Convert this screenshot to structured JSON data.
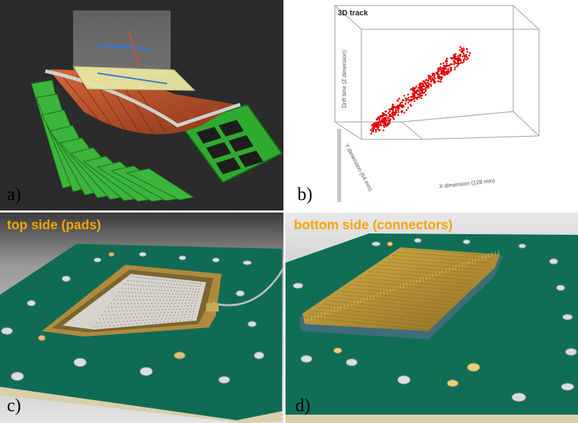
{
  "figure": {
    "panels": [
      {
        "id": "a",
        "label": "a)"
      },
      {
        "id": "b",
        "label": "b)",
        "title": "3D track",
        "axes": {
          "z": "Drift time (Z dimension)",
          "y": "Y dimension (64 mm)",
          "x": "X dimension (128 mm)"
        }
      },
      {
        "id": "c",
        "label": "c)",
        "caption": "top side (pads)"
      },
      {
        "id": "d",
        "label": "d)",
        "caption": "bottom side (connectors)"
      }
    ]
  },
  "colors": {
    "caption": "#f5a400",
    "pcb": "#0f6b55",
    "track": "#e00000",
    "module_green": "#2fae2f"
  }
}
